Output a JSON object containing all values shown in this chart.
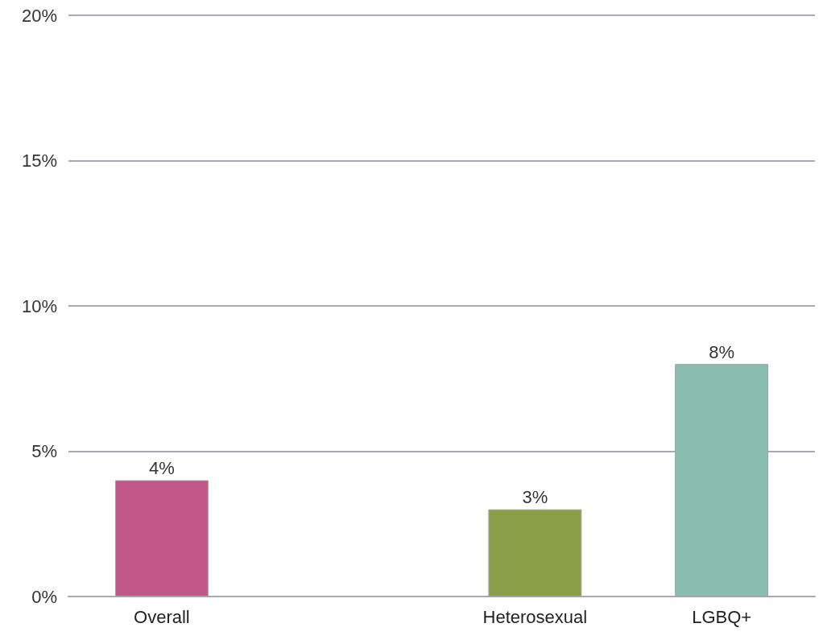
{
  "chart_data": {
    "type": "bar",
    "categories": [
      "Overall",
      null,
      "Heterosexual",
      "LGBQ+"
    ],
    "values": [
      4,
      null,
      3,
      8
    ],
    "colors": [
      "#c2578a",
      "#8a9e48",
      "#8a9e48",
      "#89bdb0"
    ],
    "value_labels": [
      "4%",
      null,
      "3%",
      "8%"
    ],
    "ylim": [
      0,
      20
    ],
    "yticks": [
      {
        "value": 0,
        "label": "0%"
      },
      {
        "value": 5,
        "label": "5%"
      },
      {
        "value": 10,
        "label": "10%"
      },
      {
        "value": 15,
        "label": "15%"
      },
      {
        "value": 20,
        "label": "20%"
      }
    ],
    "grid": "y"
  }
}
